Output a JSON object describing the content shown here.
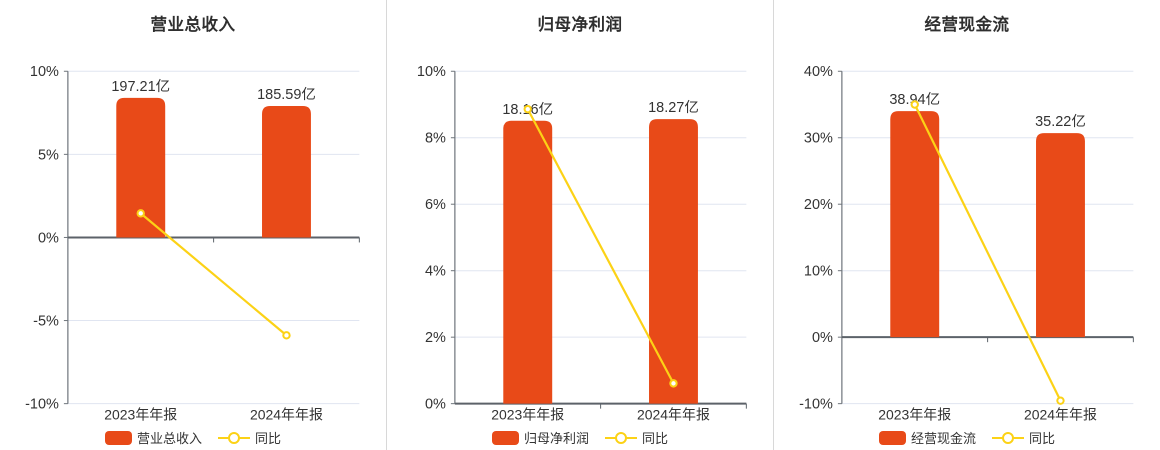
{
  "colors": {
    "bar": "#e84a18",
    "line": "#fcd216",
    "grid": "#e0e5f1",
    "zero_axis": "#5c6269",
    "y_axis": "#6e747b",
    "text": "#333333",
    "divider": "#d8d8d8",
    "marker_fill": "#ffffff"
  },
  "chart_data": [
    {
      "type": "bar",
      "title": "营业总收入",
      "categories": [
        "2023年年报",
        "2024年年报"
      ],
      "bar_series": {
        "name": "营业总收入",
        "unit": "亿",
        "values": [
          197.21,
          185.59
        ],
        "labels": [
          "197.21亿",
          "185.59亿"
        ]
      },
      "line_series": {
        "name": "同比",
        "values_pct": [
          1.45,
          -5.89
        ]
      },
      "y_axis": {
        "min": -10,
        "max": 10,
        "step": 5,
        "labels": [
          "-10%",
          "-5%",
          "0%",
          "5%",
          "10%"
        ]
      },
      "layout": {
        "bar_heights_axis": [
          8.4,
          7.91
        ],
        "grid": true,
        "legend_position": "bottom"
      }
    },
    {
      "type": "bar",
      "title": "归母净利润",
      "categories": [
        "2023年年报",
        "2024年年报"
      ],
      "bar_series": {
        "name": "归母净利润",
        "unit": "亿",
        "values": [
          18.16,
          18.27
        ],
        "labels": [
          "18.16亿",
          "18.27亿"
        ]
      },
      "line_series": {
        "name": "同比",
        "values_pct": [
          8.86,
          0.61
        ]
      },
      "y_axis": {
        "min": 0,
        "max": 10,
        "step": 2,
        "labels": [
          "0%",
          "2%",
          "4%",
          "6%",
          "8%",
          "10%"
        ]
      },
      "layout": {
        "bar_heights_axis": [
          8.51,
          8.56
        ],
        "grid": true,
        "legend_position": "bottom"
      }
    },
    {
      "type": "bar",
      "title": "经营现金流",
      "categories": [
        "2023年年报",
        "2024年年报"
      ],
      "bar_series": {
        "name": "经营现金流",
        "unit": "亿",
        "values": [
          38.94,
          35.22
        ],
        "labels": [
          "38.94亿",
          "35.22亿"
        ]
      },
      "line_series": {
        "name": "同比",
        "values_pct": [
          35.0,
          -9.55
        ]
      },
      "y_axis": {
        "min": -10,
        "max": 40,
        "step": 10,
        "labels": [
          "-10%",
          "0%",
          "10%",
          "20%",
          "30%",
          "40%"
        ]
      },
      "layout": {
        "bar_heights_axis": [
          34.0,
          30.7
        ],
        "grid": true,
        "legend_position": "bottom"
      }
    }
  ]
}
